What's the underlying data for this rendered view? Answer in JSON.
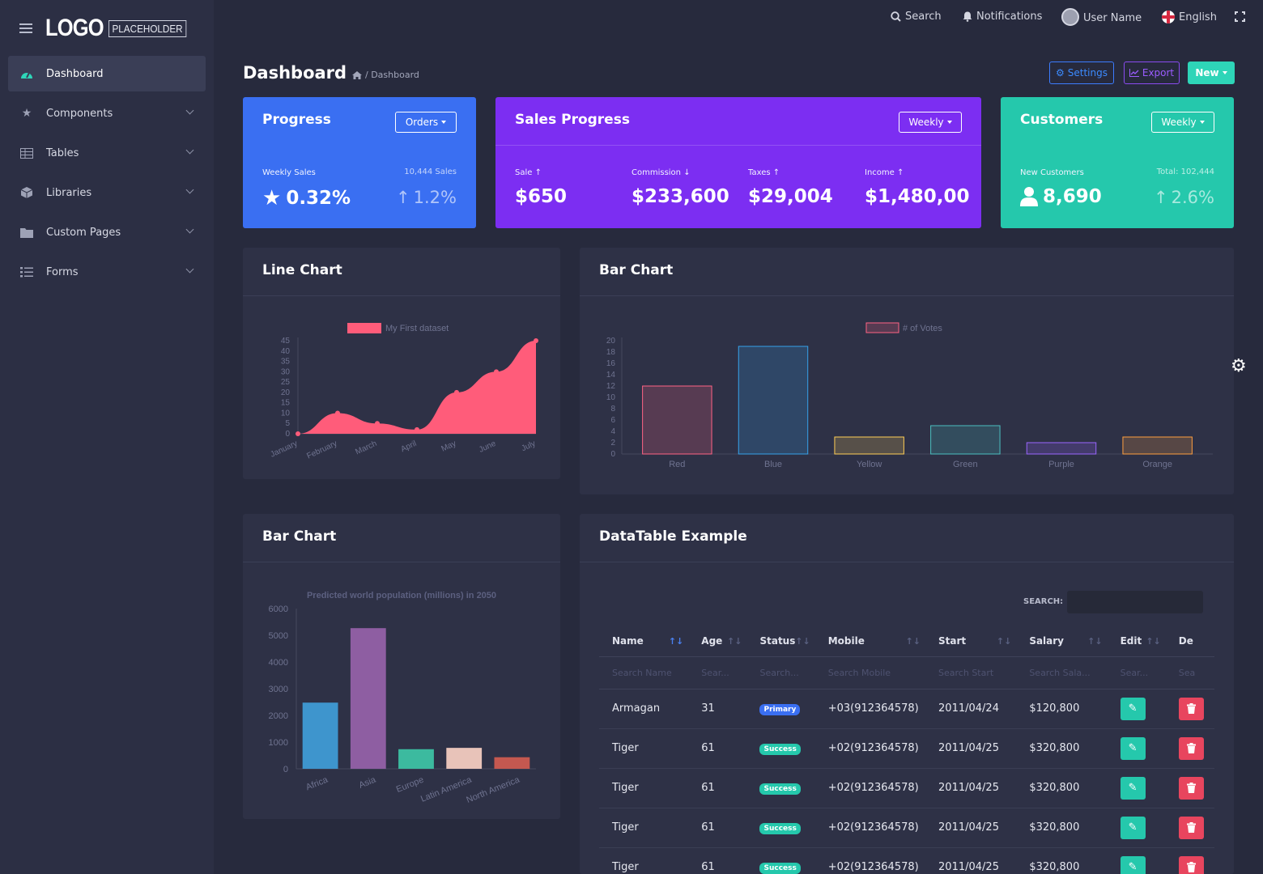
{
  "logo": {
    "main": "LOGO",
    "sub": "PLACEHOLDER"
  },
  "sidebar": {
    "items": [
      {
        "label": "Dashboard",
        "icon": "gauge-icon",
        "active": true
      },
      {
        "label": "Components",
        "icon": "star-icon"
      },
      {
        "label": "Tables",
        "icon": "table-icon"
      },
      {
        "label": "Libraries",
        "icon": "cube-icon"
      },
      {
        "label": "Custom Pages",
        "icon": "folder-icon"
      },
      {
        "label": "Forms",
        "icon": "list-icon"
      }
    ]
  },
  "topbar": {
    "search": "Search",
    "notifications": "Notifications",
    "user": "User Name",
    "language": "English"
  },
  "header": {
    "title": "Dashboard",
    "breadcrumb": "/ Dashboard",
    "settings": "Settings",
    "export": "Export",
    "new": "New"
  },
  "progress_card": {
    "title": "Progress",
    "dropdown": "Orders",
    "label": "Weekly Sales",
    "right_label": "10,444 Sales",
    "value": "0.32%",
    "pct": "1.2%",
    "color": "#3a6ff2"
  },
  "sales_card": {
    "title": "Sales Progress",
    "dropdown": "Weekly",
    "color": "#7c2ef2",
    "metrics": [
      {
        "label": "Sale",
        "value": "$650",
        "trend": "up"
      },
      {
        "label": "Commission",
        "value": "$233,600",
        "trend": "down"
      },
      {
        "label": "Taxes",
        "value": "$29,004",
        "trend": "up"
      },
      {
        "label": "Income",
        "value": "$1,480,00",
        "trend": "up"
      }
    ]
  },
  "customers_card": {
    "title": "Customers",
    "dropdown": "Weekly",
    "label": "New Customers",
    "right_label": "Total: 102,444",
    "value": "8,690",
    "pct": "2.6%",
    "color": "#25c8ac"
  },
  "line_chart_panel": {
    "title": "Line Chart"
  },
  "bar_chart_panel": {
    "title": "Bar Chart"
  },
  "bar_chart2_panel": {
    "title": "Bar Chart"
  },
  "datatable_panel": {
    "title": "DataTable Example",
    "search_label": "SEARCH:",
    "columns": [
      "Name",
      "Age",
      "Status",
      "Mobile",
      "Start",
      "Salary",
      "Edit",
      "De"
    ],
    "filters": [
      "Search Name",
      "Sear...",
      "Search...",
      "Search Mobile",
      "Search Start",
      "Search Sala...",
      "Sear...",
      "Sea"
    ],
    "rows": [
      {
        "name": "Armagan",
        "age": "31",
        "status": "Primary",
        "mobile": "+03(912364578)",
        "start": "2011/04/24",
        "salary": "$120,800"
      },
      {
        "name": "Tiger",
        "age": "61",
        "status": "Success",
        "mobile": "+02(912364578)",
        "start": "2011/04/25",
        "salary": "$320,800"
      },
      {
        "name": "Tiger",
        "age": "61",
        "status": "Success",
        "mobile": "+02(912364578)",
        "start": "2011/04/25",
        "salary": "$320,800"
      },
      {
        "name": "Tiger",
        "age": "61",
        "status": "Success",
        "mobile": "+02(912364578)",
        "start": "2011/04/25",
        "salary": "$320,800"
      },
      {
        "name": "Tiger",
        "age": "61",
        "status": "Success",
        "mobile": "+02(912364578)",
        "start": "2011/04/25",
        "salary": "$320,800"
      }
    ]
  },
  "chart_data": [
    {
      "type": "area",
      "categories": [
        "January",
        "February",
        "March",
        "April",
        "May",
        "June",
        "July"
      ],
      "series": [
        {
          "name": "My First dataset",
          "values": [
            0,
            10,
            5,
            2,
            20,
            30,
            45
          ],
          "color": "#ff5c7a"
        }
      ],
      "ylim": [
        0,
        45
      ],
      "yticks": [
        0,
        5,
        10,
        15,
        20,
        25,
        30,
        35,
        40,
        45
      ],
      "legend": "top"
    },
    {
      "type": "bar",
      "categories": [
        "Red",
        "Blue",
        "Yellow",
        "Green",
        "Purple",
        "Orange"
      ],
      "series": [
        {
          "name": "# of Votes",
          "values": [
            12,
            19,
            3,
            5,
            2,
            3
          ]
        }
      ],
      "colors": [
        "#ff6384",
        "#36a2eb",
        "#ffce56",
        "#4bc0c0",
        "#9966ff",
        "#ff9f40"
      ],
      "ylim": [
        0,
        20
      ],
      "yticks": [
        0,
        2,
        4,
        6,
        8,
        10,
        12,
        14,
        16,
        18,
        20
      ],
      "legend": "top"
    },
    {
      "type": "bar",
      "title": "Predicted world population (millions) in 2050",
      "categories": [
        "Africa",
        "Asia",
        "Europe",
        "Latin America",
        "North America"
      ],
      "values": [
        2478,
        5267,
        734,
        784,
        433
      ],
      "colors": [
        "#3e95cd",
        "#8e5ea2",
        "#3cba9f",
        "#e8c3b9",
        "#c45850"
      ],
      "ylim": [
        0,
        6000
      ],
      "yticks": [
        0,
        1000,
        2000,
        3000,
        4000,
        5000,
        6000
      ]
    }
  ]
}
